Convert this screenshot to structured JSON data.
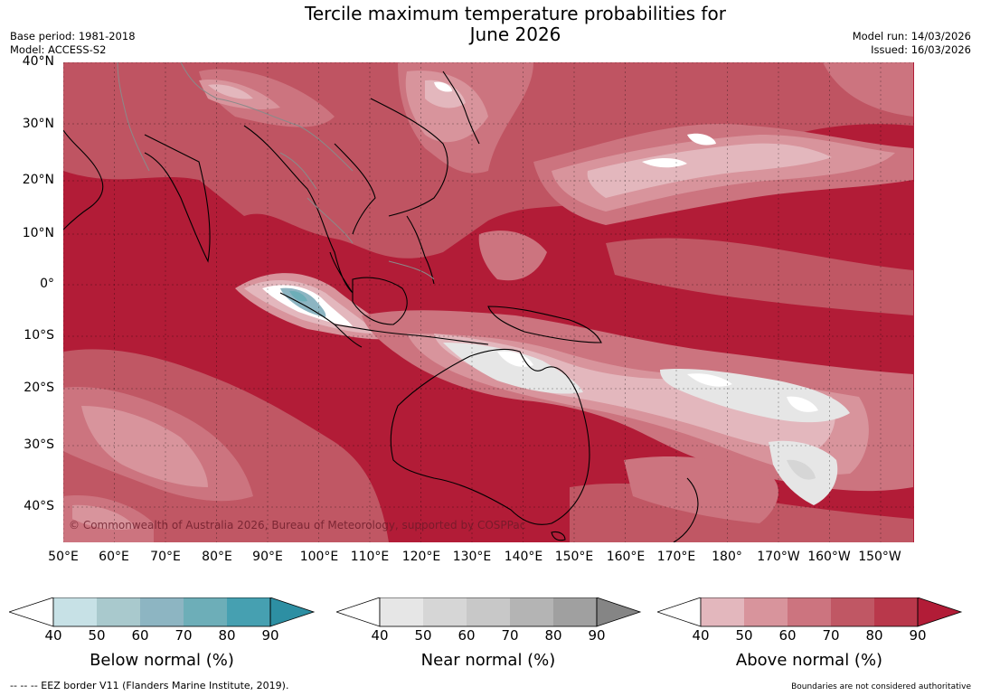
{
  "title": {
    "line1": "Tercile maximum temperature probabilities for",
    "line2": "June 2026"
  },
  "meta": {
    "base_period": "Base period: 1981-2018",
    "model": "Model: ACCESS-S2",
    "model_run": "Model run: 14/03/2026",
    "issued": "Issued: 16/03/2026"
  },
  "map": {
    "copyright": "© Commonwealth of Australia 2026, Bureau of Meteorology, supported by COSPPac",
    "lat_labels": [
      "40°N",
      "30°N",
      "20°N",
      "10°N",
      "0°",
      "10°S",
      "20°S",
      "30°S",
      "40°S"
    ],
    "lon_labels": [
      "50°E",
      "60°E",
      "70°E",
      "80°E",
      "90°E",
      "100°E",
      "110°E",
      "120°E",
      "130°E",
      "140°E",
      "150°E",
      "160°E",
      "170°E",
      "180°",
      "170°W",
      "160°W",
      "150°W"
    ]
  },
  "colorbars": [
    {
      "label": "Below normal (%)",
      "ticks": [
        "40",
        "50",
        "60",
        "70",
        "80",
        "90"
      ],
      "colors": [
        "#c7e1e6",
        "#a9c9cd",
        "#8db5c2",
        "#6daeb8",
        "#46a0b1",
        "#2d8fa3"
      ]
    },
    {
      "label": "Near normal (%)",
      "ticks": [
        "40",
        "50",
        "60",
        "70",
        "80",
        "90"
      ],
      "colors": [
        "#e6e6e6",
        "#d6d6d6",
        "#c8c8c8",
        "#b4b4b4",
        "#a0a0a0",
        "#858585"
      ]
    },
    {
      "label": "Above normal (%)",
      "ticks": [
        "40",
        "50",
        "60",
        "70",
        "80",
        "90"
      ],
      "colors": [
        "#e3b7bd",
        "#d8949c",
        "#cc747f",
        "#c05764",
        "#b9384b",
        "#b21c37"
      ]
    }
  ],
  "footer": {
    "eez": "--  --  -- EEZ border V11 (Flanders Marine Institute, 2019).",
    "disclaimer": "Boundaries are not considered authoritative"
  },
  "colors": {
    "above_dominant": "#b21c37",
    "land_outline": "#000000",
    "border_grey": "#8a8a8a"
  }
}
